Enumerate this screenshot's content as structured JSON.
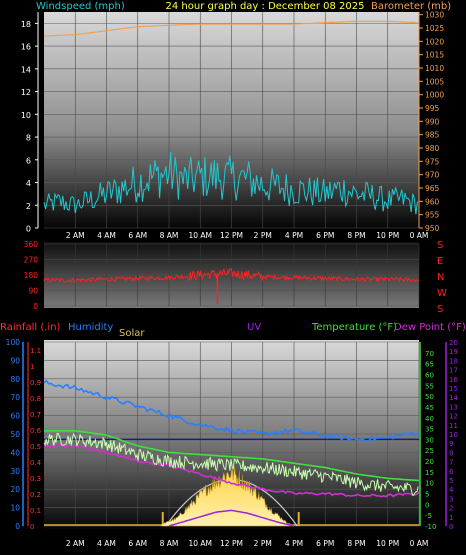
{
  "header": {
    "windspeed_label": "Windspeed (mph)",
    "title": "24 hour graph day : December 08 2025",
    "barometer_label": "Barometer (mb)"
  },
  "legend": {
    "rainfall": "Rainfall (.in)",
    "humidity": "Humidity",
    "solar": "Solar",
    "uv": "UV",
    "temperature": "Temperature (°F)",
    "dewpoint": "Dew Point (°F)"
  },
  "compass": [
    "S",
    "E",
    "N",
    "W",
    "S"
  ],
  "colors": {
    "wind": "#22c8d0",
    "barometer": "#f0a050",
    "direction": "#ff2020",
    "rain": "#ff3030",
    "humidity": "#2a7fff",
    "solar": "#d8c060",
    "uv": "#a020e0",
    "temperature": "#40e040",
    "dewpoint": "#d030d0",
    "temp_trace": "#c8ffb0"
  },
  "chart_data": [
    {
      "type": "line",
      "title": "24 hour graph day : December 08 2025",
      "x_ticks": [
        "2 AM",
        "4 AM",
        "6 AM",
        "8 AM",
        "10 AM",
        "12 PM",
        "2 PM",
        "4 PM",
        "6 PM",
        "8 PM",
        "10 PM",
        "0 AM"
      ],
      "ylabel": "Windspeed (mph)",
      "ylim": [
        0,
        19
      ],
      "y_ticks": [
        0,
        2,
        4,
        6,
        8,
        10,
        12,
        14,
        16,
        18
      ],
      "y2label": "Barometer (mb)",
      "y2lim": [
        950,
        1031
      ],
      "y2_ticks": [
        950,
        955,
        960,
        965,
        970,
        975,
        980,
        985,
        990,
        995,
        1000,
        1005,
        1010,
        1015,
        1020,
        1025,
        1030
      ],
      "series": [
        {
          "name": "Windspeed (mph)",
          "axis": "left",
          "x": [
            0,
            1,
            2,
            3,
            4,
            5,
            6,
            7,
            8,
            9,
            10,
            11,
            12,
            13,
            14,
            15,
            16,
            17,
            18,
            19,
            20,
            21,
            22,
            23,
            24
          ],
          "values": [
            2,
            2.3,
            2,
            2.5,
            3,
            3.5,
            4,
            4.5,
            4.8,
            4.2,
            4.5,
            4.5,
            4.4,
            4.3,
            3.8,
            3.6,
            3.4,
            3.2,
            3,
            3.5,
            3,
            2.8,
            2.4,
            2.5,
            2
          ]
        },
        {
          "name": "Barometer (mb)",
          "axis": "right",
          "x": [
            0,
            2,
            4,
            6,
            8,
            10,
            12,
            14,
            16,
            18,
            20,
            22,
            24
          ],
          "values": [
            1022,
            1022.5,
            1024,
            1025.5,
            1026,
            1026.5,
            1026.5,
            1026.5,
            1026.5,
            1027,
            1027.5,
            1027.5,
            1027
          ]
        }
      ]
    },
    {
      "type": "line",
      "title": "",
      "x_ticks": [],
      "ylim": [
        0,
        360
      ],
      "y_ticks": [
        0,
        90,
        180,
        270,
        360
      ],
      "series": [
        {
          "name": "Wind direction",
          "x": [
            0,
            2,
            4,
            6,
            8,
            10,
            12,
            14,
            16,
            18,
            20,
            22,
            24
          ],
          "values": [
            150,
            150,
            155,
            160,
            165,
            180,
            190,
            170,
            165,
            160,
            155,
            155,
            150
          ]
        }
      ]
    },
    {
      "type": "line",
      "title": "",
      "x_ticks": [
        "2 AM",
        "4 AM",
        "6 AM",
        "8 AM",
        "10 AM",
        "12 PM",
        "2 PM",
        "4 PM",
        "6 PM",
        "8 PM",
        "10 PM",
        "0 AM"
      ],
      "y_humidity_ticks": [
        0,
        10,
        20,
        30,
        40,
        50,
        60,
        70,
        80,
        90,
        100
      ],
      "y_rain_ticks": [
        0,
        0.1,
        0.2,
        0.3,
        0.4,
        0.5,
        0.6,
        0.7,
        0.8,
        0.9,
        1,
        1.1
      ],
      "y_temp_ticks": [
        -10,
        -5,
        0,
        5,
        10,
        15,
        20,
        25,
        30,
        35,
        40,
        45,
        50,
        55,
        60,
        65,
        70
      ],
      "y_uv_ticks": [
        0,
        1,
        2,
        3,
        4,
        5,
        6,
        7,
        8,
        9,
        10,
        11,
        12,
        13,
        14,
        15,
        16,
        17,
        18,
        19,
        20
      ],
      "series": [
        {
          "name": "Humidity",
          "axis": "humidity",
          "x": [
            0,
            2,
            4,
            6,
            8,
            10,
            12,
            14,
            16,
            18,
            20,
            22,
            24
          ],
          "values": [
            78,
            75,
            70,
            65,
            60,
            55,
            52,
            50,
            52,
            49,
            47,
            48,
            51
          ]
        },
        {
          "name": "Temperature (°F)",
          "axis": "temperature",
          "x": [
            0,
            2,
            4,
            6,
            8,
            10,
            12,
            14,
            16,
            18,
            20,
            22,
            24
          ],
          "values": [
            32,
            32,
            30,
            25,
            22,
            21,
            20,
            19,
            17,
            15,
            12,
            10,
            9
          ]
        },
        {
          "name": "Dew Point (°F)",
          "axis": "temperature",
          "x": [
            0,
            2,
            4,
            6,
            8,
            10,
            12,
            14,
            16,
            18,
            20,
            22,
            24
          ],
          "values": [
            27,
            27,
            24,
            20,
            18,
            14,
            10,
            7,
            5,
            5,
            4,
            4,
            5
          ]
        },
        {
          "name": "Solar",
          "axis": "solar",
          "x": [
            7.5,
            8.5,
            9.5,
            10.5,
            11.5,
            12,
            12.5,
            13.5,
            14.5,
            15.5,
            16
          ],
          "values": [
            0.02,
            0.1,
            0.3,
            0.5,
            0.65,
            0.7,
            0.62,
            0.45,
            0.22,
            0.05,
            0
          ]
        },
        {
          "name": "UV",
          "axis": "uv",
          "x": [
            8,
            9,
            10,
            11,
            12,
            13,
            14,
            15,
            16
          ],
          "values": [
            0,
            0.5,
            1,
            1.5,
            1.7,
            1.4,
            0.9,
            0.4,
            0
          ]
        }
      ]
    }
  ]
}
